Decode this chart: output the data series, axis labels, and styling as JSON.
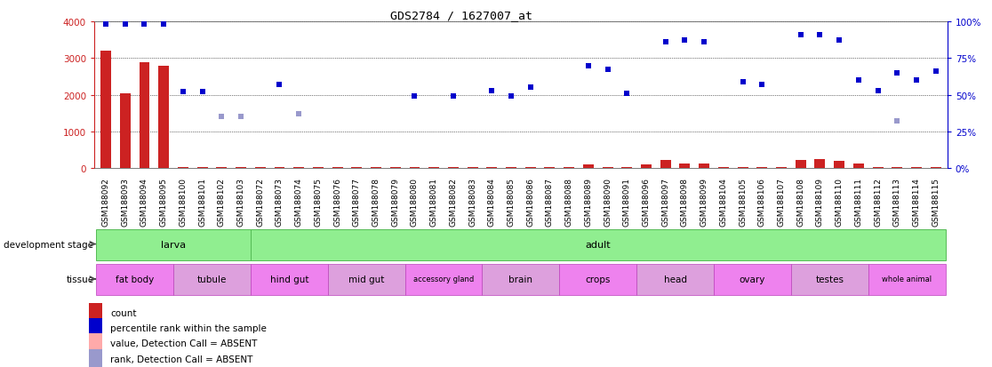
{
  "title": "GDS2784 / 1627007_at",
  "samples": [
    "GSM188092",
    "GSM188093",
    "GSM188094",
    "GSM188095",
    "GSM188100",
    "GSM188101",
    "GSM188102",
    "GSM188103",
    "GSM188072",
    "GSM188073",
    "GSM188074",
    "GSM188075",
    "GSM188076",
    "GSM188077",
    "GSM188078",
    "GSM188079",
    "GSM188080",
    "GSM188081",
    "GSM188082",
    "GSM188083",
    "GSM188084",
    "GSM188085",
    "GSM188086",
    "GSM188087",
    "GSM188088",
    "GSM188089",
    "GSM188090",
    "GSM188091",
    "GSM188096",
    "GSM188097",
    "GSM188098",
    "GSM188099",
    "GSM188104",
    "GSM188105",
    "GSM188106",
    "GSM188107",
    "GSM188108",
    "GSM188109",
    "GSM188110",
    "GSM188111",
    "GSM188112",
    "GSM188113",
    "GSM188114",
    "GSM188115"
  ],
  "counts": [
    3200,
    2050,
    2880,
    2790,
    30,
    30,
    30,
    30,
    30,
    30,
    30,
    30,
    30,
    30,
    30,
    30,
    30,
    30,
    30,
    30,
    30,
    30,
    30,
    30,
    30,
    100,
    30,
    30,
    100,
    220,
    120,
    120,
    30,
    30,
    30,
    30,
    240,
    260,
    210,
    120,
    30,
    30,
    30,
    30
  ],
  "percentile_ranks": [
    98,
    98,
    98,
    98,
    52,
    52,
    null,
    null,
    null,
    57,
    null,
    null,
    null,
    null,
    null,
    null,
    49,
    null,
    49,
    null,
    53,
    49,
    55,
    null,
    null,
    70,
    67,
    51,
    null,
    86,
    87,
    86,
    null,
    59,
    57,
    null,
    91,
    91,
    87,
    60,
    53,
    65,
    60,
    66
  ],
  "absent_ranks": [
    null,
    null,
    null,
    null,
    null,
    null,
    35,
    35,
    null,
    null,
    37,
    null,
    null,
    null,
    null,
    null,
    null,
    null,
    null,
    null,
    null,
    null,
    null,
    null,
    null,
    null,
    null,
    null,
    null,
    null,
    null,
    null,
    null,
    null,
    null,
    null,
    null,
    null,
    null,
    null,
    null,
    32,
    null,
    null
  ],
  "dev_stages": [
    {
      "label": "larva",
      "start": 0,
      "end": 8
    },
    {
      "label": "adult",
      "start": 8,
      "end": 44
    }
  ],
  "tissue_groups": [
    {
      "label": "fat body",
      "start": 0,
      "end": 4,
      "alt": false
    },
    {
      "label": "tubule",
      "start": 4,
      "end": 8,
      "alt": true
    },
    {
      "label": "hind gut",
      "start": 8,
      "end": 12,
      "alt": false
    },
    {
      "label": "mid gut",
      "start": 12,
      "end": 16,
      "alt": true
    },
    {
      "label": "accessory gland",
      "start": 16,
      "end": 20,
      "alt": false
    },
    {
      "label": "brain",
      "start": 20,
      "end": 24,
      "alt": true
    },
    {
      "label": "crops",
      "start": 24,
      "end": 28,
      "alt": false
    },
    {
      "label": "head",
      "start": 28,
      "end": 32,
      "alt": true
    },
    {
      "label": "ovary",
      "start": 32,
      "end": 36,
      "alt": false
    },
    {
      "label": "testes",
      "start": 36,
      "end": 40,
      "alt": true
    },
    {
      "label": "whole animal",
      "start": 40,
      "end": 44,
      "alt": false
    }
  ],
  "tissue_color_main": "#ee82ee",
  "tissue_color_alt": "#dda0dd",
  "dev_color": "#90ee90",
  "dev_border": "#55bb55",
  "tissue_border": "#bb44bb",
  "yticks_left": [
    0,
    1000,
    2000,
    3000,
    4000
  ],
  "yticks_right": [
    0,
    25,
    50,
    75,
    100
  ],
  "bar_color": "#cc2222",
  "dot_color": "#0000cc",
  "absent_dot_color": "#9999cc",
  "absent_bar_color": "#ffaaaa",
  "bg_color": "#ffffff",
  "label_fontsize": 6.5,
  "tick_fontsize": 7.5
}
